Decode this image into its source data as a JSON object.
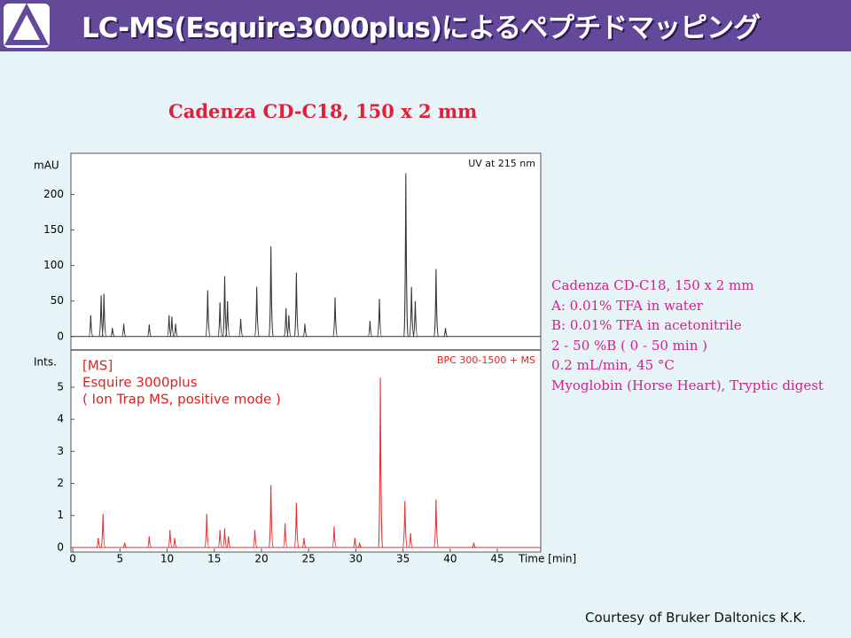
{
  "header": {
    "title": "LC-MS(Esquire3000plus)によるペプチドマッピング"
  },
  "figure_title": "Cadenza CD-C18, 150 x 2 mm",
  "chart_data": [
    {
      "type": "chromatogram",
      "ylabel": "mAU",
      "annotation": "UV at 215 nm",
      "color": "#333333",
      "x": [
        1.9,
        3.0,
        3.3,
        4.2,
        5.4,
        8.1,
        10.2,
        10.5,
        10.9,
        14.3,
        15.6,
        16.1,
        16.4,
        17.8,
        19.5,
        21.0,
        22.6,
        22.9,
        23.7,
        24.6,
        27.8,
        31.5,
        32.5,
        35.3,
        35.9,
        36.3,
        38.5,
        39.5
      ],
      "values": [
        30,
        58,
        60,
        12,
        18,
        17,
        30,
        28,
        18,
        65,
        48,
        85,
        50,
        25,
        70,
        127,
        40,
        30,
        90,
        18,
        55,
        22,
        53,
        230,
        70,
        50,
        95,
        12
      ],
      "xlim": [
        -0.2,
        49.6
      ],
      "ylim": [
        -19,
        258
      ],
      "yticks": [
        0,
        50,
        100,
        150,
        200
      ]
    },
    {
      "type": "chromatogram",
      "ylabel": "Ints.",
      "xlabel": "Time [min]",
      "annotation": "BPC 300-1500 + MS",
      "labels": [
        "[MS]",
        "Esquire 3000plus",
        "( Ion Trap MS, positive mode )"
      ],
      "color": "#e83030",
      "x": [
        2.7,
        3.2,
        5.5,
        8.1,
        10.3,
        10.8,
        14.2,
        15.6,
        16.1,
        16.5,
        19.3,
        21.0,
        22.5,
        23.7,
        24.5,
        27.7,
        29.9,
        30.4,
        32.6,
        35.2,
        35.8,
        38.5,
        42.5
      ],
      "values": [
        0.3,
        1.05,
        0.15,
        0.35,
        0.55,
        0.3,
        1.05,
        0.55,
        0.6,
        0.35,
        0.55,
        1.95,
        0.75,
        1.4,
        0.3,
        0.65,
        0.3,
        0.15,
        5.3,
        1.45,
        0.45,
        1.5,
        0.15
      ],
      "xlim": [
        -0.2,
        49.6
      ],
      "xticks": [
        0,
        5,
        10,
        15,
        20,
        25,
        30,
        35,
        40,
        45
      ],
      "ylim": [
        -0.14,
        6.16
      ],
      "yticks": [
        0,
        1,
        2,
        3,
        4,
        5
      ]
    }
  ],
  "conditions": [
    "Cadenza CD-C18, 150 x 2 mm",
    "A: 0.01% TFA in water",
    "B: 0.01% TFA in acetonitrile",
    "2 - 50 %B ( 0 - 50 min )",
    "0.2 mL/min, 45 °C",
    "Myoglobin (Horse Heart), Tryptic digest"
  ],
  "credit": "Courtesy of Bruker Daltonics K.K."
}
